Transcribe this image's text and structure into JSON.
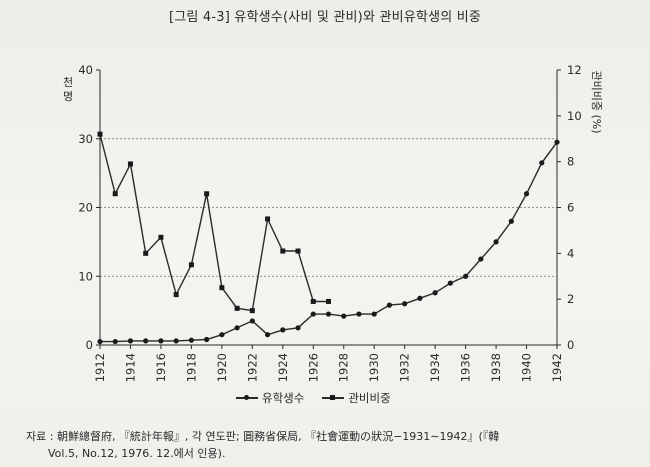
{
  "chart_data": {
    "type": "line",
    "title": "[그림 4-3] 유학생수(사비 및 관비)와 관비유학생의 비중",
    "ylabel_left": "천\n명",
    "ylabel_right": "관비비중 (%)",
    "ylim_left": [
      0,
      40
    ],
    "ylim_right": [
      0,
      12
    ],
    "yticks_left": [
      "0",
      "10",
      "20",
      "30",
      "40"
    ],
    "yticks_right": [
      "0",
      "2",
      "4",
      "6",
      "8",
      "10",
      "12"
    ],
    "grid": "horizontal dashed at 10, 20, 30",
    "legend_position": "bottom",
    "x_tick_labels": [
      "1912",
      "1914",
      "1916",
      "1918",
      "1920",
      "1922",
      "1924",
      "1926",
      "1928",
      "1930",
      "1932",
      "1934",
      "1936",
      "1938",
      "1940",
      "1942"
    ],
    "series": [
      {
        "name": "유학생수",
        "axis": "left",
        "marker": "circle",
        "x": [
          1912,
          1913,
          1914,
          1915,
          1916,
          1917,
          1918,
          1919,
          1920,
          1921,
          1922,
          1923,
          1924,
          1925,
          1926,
          1927,
          1928,
          1929,
          1930,
          1931,
          1932,
          1933,
          1934,
          1935,
          1936,
          1937,
          1938,
          1939,
          1940,
          1941,
          1942
        ],
        "values": [
          0.5,
          0.5,
          0.6,
          0.6,
          0.6,
          0.6,
          0.7,
          0.8,
          1.5,
          2.5,
          3.5,
          1.5,
          2.2,
          2.5,
          4.5,
          4.5,
          4.2,
          4.5,
          4.5,
          5.8,
          6.0,
          6.8,
          7.6,
          9.0,
          10.0,
          12.5,
          15.0,
          18.0,
          22.0,
          26.5,
          29.5
        ]
      },
      {
        "name": "관비비중",
        "axis": "right",
        "marker": "square",
        "x": [
          1912,
          1913,
          1914,
          1915,
          1916,
          1917,
          1918,
          1919,
          1920,
          1921,
          1922,
          1923,
          1924,
          1925,
          1926,
          1927
        ],
        "values": [
          9.2,
          6.6,
          7.9,
          4.0,
          4.7,
          2.2,
          3.5,
          6.6,
          2.5,
          1.6,
          1.5,
          5.5,
          4.1,
          4.1,
          1.9,
          1.9
        ]
      }
    ]
  },
  "legend": {
    "students_label": "유학생수",
    "share_label": "관비비중"
  },
  "source": {
    "line1": "자료 : 朝鮮總督府, 『統計年報』, 각 연도판; 圓務省保局, 『社會運動の狀況−1931∼1942』(『韓",
    "line2": "Vol.5, No.12, 1976. 12.에서 인용)."
  },
  "colors": {
    "line": "#2a2a2a",
    "grid": "#6e6e6e",
    "background": "#f2f2ee"
  }
}
